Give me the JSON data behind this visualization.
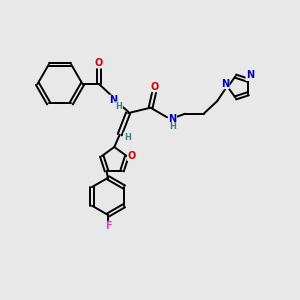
{
  "background_color": "#e8e8e8",
  "atom_colors": {
    "C": "#000000",
    "N": "#0000bb",
    "O": "#cc0000",
    "F": "#cc44cc",
    "H": "#408080"
  },
  "bg": "#e8e8e8"
}
